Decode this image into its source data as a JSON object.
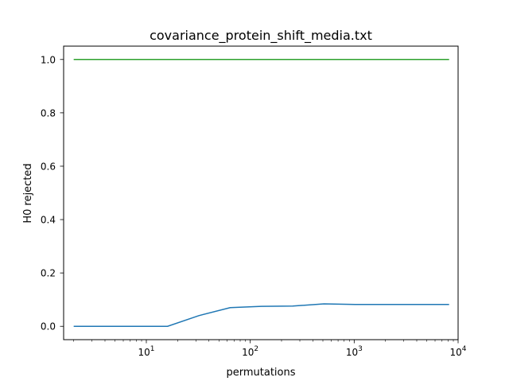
{
  "chart_data": {
    "type": "line",
    "title": "covariance_protein_shift_media.txt",
    "xlabel": "permutations",
    "ylabel": "H0 rejected",
    "xscale": "log",
    "xlim": [
      1.6,
      10000
    ],
    "ylim": [
      -0.05,
      1.05
    ],
    "grid": false,
    "x_ticks": [
      {
        "value": 10,
        "label": "10¹",
        "base": "10",
        "exp": "1"
      },
      {
        "value": 100,
        "label": "10²",
        "base": "10",
        "exp": "2"
      },
      {
        "value": 1000,
        "label": "10³",
        "base": "10",
        "exp": "3"
      },
      {
        "value": 10000,
        "label": "10⁴",
        "base": "10",
        "exp": "4"
      }
    ],
    "y_ticks": [
      {
        "value": 0.0,
        "label": "0.0"
      },
      {
        "value": 0.2,
        "label": "0.2"
      },
      {
        "value": 0.4,
        "label": "0.4"
      },
      {
        "value": 0.6,
        "label": "0.6"
      },
      {
        "value": 0.8,
        "label": "0.8"
      },
      {
        "value": 1.0,
        "label": "1.0"
      }
    ],
    "x": [
      2,
      4,
      8,
      16,
      32,
      64,
      128,
      256,
      512,
      1024,
      2048,
      4096,
      8192
    ],
    "series": [
      {
        "color": "#1f77b4",
        "values": [
          0.0,
          0.0,
          0.0,
          0.0,
          0.04,
          0.07,
          0.075,
          0.076,
          0.084,
          0.082,
          0.082,
          0.082,
          0.082
        ]
      },
      {
        "color": "#2ca02c",
        "values": [
          1.0,
          1.0,
          1.0,
          1.0,
          1.0,
          1.0,
          1.0,
          1.0,
          1.0,
          1.0,
          1.0,
          1.0,
          1.0
        ]
      }
    ]
  }
}
